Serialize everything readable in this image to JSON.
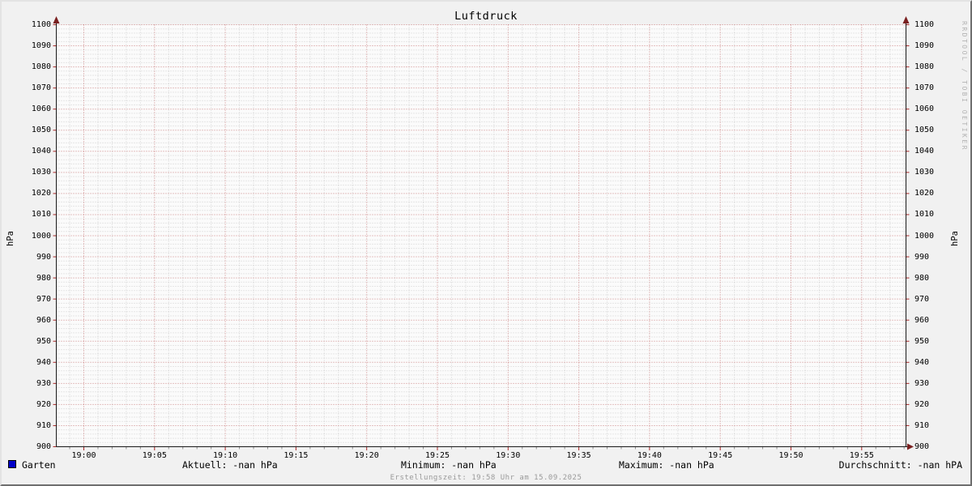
{
  "chart": {
    "title": "Luftdruck",
    "y_axis_unit": "hPa",
    "watermark": "RRDTOOL / TOBI OETIKER",
    "footer": "Erstellungszeit: 19:58 Uhr am 15.09.2025"
  },
  "legend": {
    "series_label": "Garten",
    "series_color": "#0000c8",
    "stats": {
      "aktuell": "Aktuell: -nan hPa",
      "minimum": "Minimum: -nan hPa",
      "maximum": "Maximum: -nan hPa",
      "durchschnitt": "Durchschnitt: -nan hPA"
    }
  },
  "chart_data": {
    "type": "line",
    "title": "Luftdruck",
    "xlabel": "",
    "ylabel": "hPa",
    "ylim": [
      900,
      1100
    ],
    "y_major_step": 10,
    "y_minor_step": 2,
    "y_ticks": [
      1100,
      1090,
      1080,
      1070,
      1060,
      1050,
      1040,
      1030,
      1020,
      1010,
      1000,
      990,
      980,
      970,
      960,
      950,
      940,
      930,
      920,
      910,
      900
    ],
    "x_ticks": [
      "19:00",
      "19:05",
      "19:10",
      "19:15",
      "19:20",
      "19:25",
      "19:30",
      "19:35",
      "19:40",
      "19:45",
      "19:50",
      "19:55"
    ],
    "x_major_step_minutes": 5,
    "x_minor_step_minutes": 1,
    "grid": true,
    "legend_position": "bottom",
    "series": [
      {
        "name": "Garten",
        "color": "#0000c8",
        "values": []
      }
    ]
  },
  "colors": {
    "background": "#f1f1f1",
    "canvas": "#fbfbfb",
    "major_grid": "#a01010",
    "minor_grid": "#555555",
    "axis": "#1a1a1a",
    "arrow": "#7a2020",
    "series": "#0000c8",
    "footer_text": "#999999",
    "watermark_text": "#b3b3b3"
  }
}
